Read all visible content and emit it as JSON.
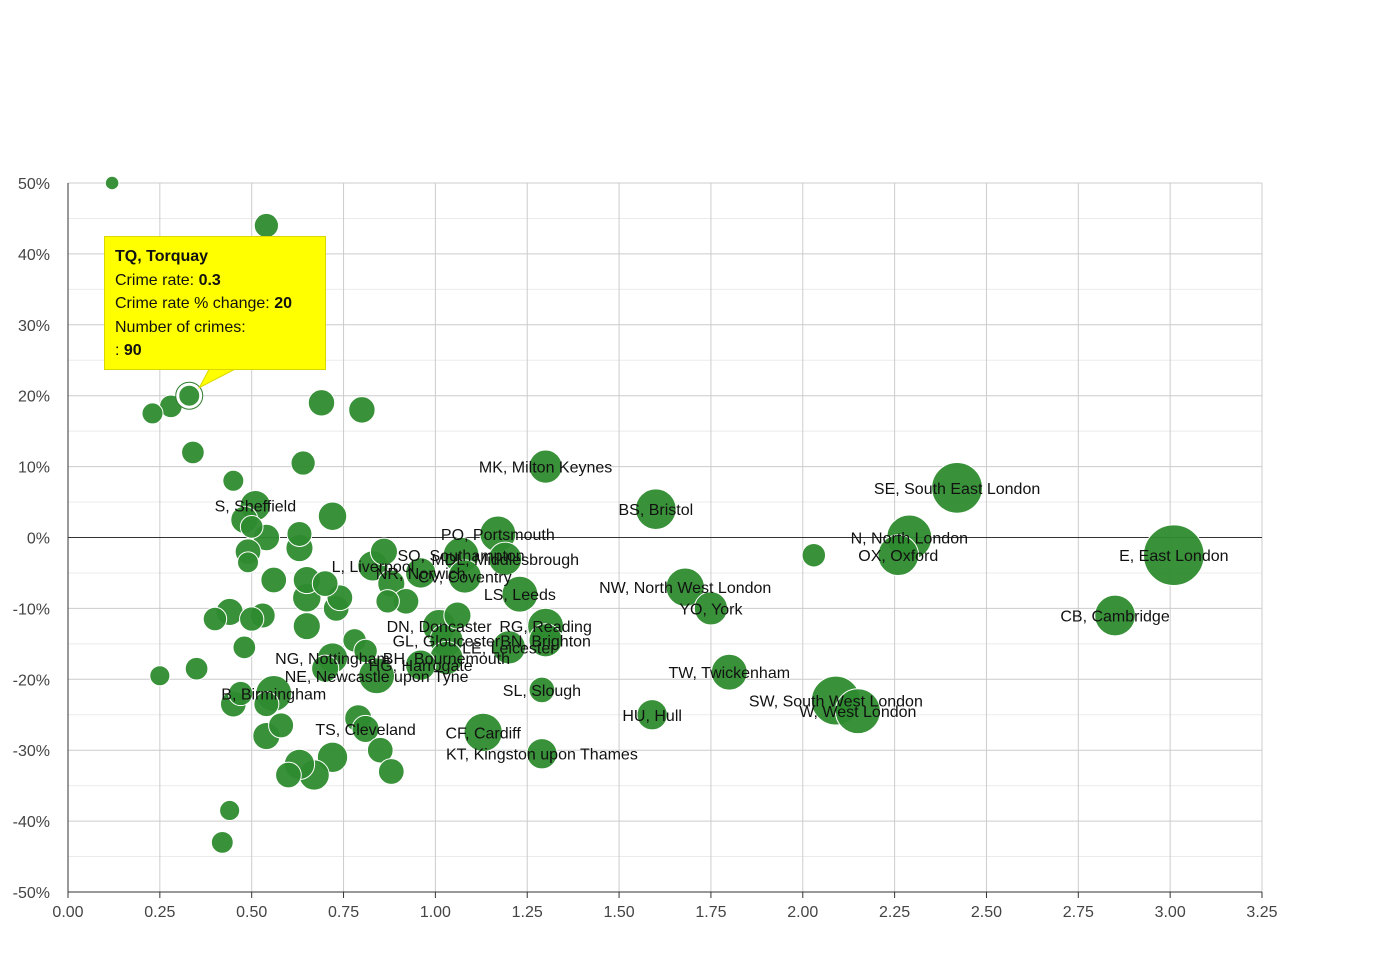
{
  "tooltip": {
    "title": "TQ, Torquay",
    "rate_label": "Crime rate:",
    "rate_value": "0.3",
    "change_label": "Crime rate % change:",
    "change_value": "20",
    "crimes_label": "Number of crimes:",
    "crimes_prefix": ":",
    "crimes_value": "90"
  },
  "colors": {
    "bubble": "#2e8b2e",
    "bubble_stroke": "#ffffff",
    "grid": "#cccccc",
    "zero_line": "#333333",
    "tooltip_bg": "#ffff00"
  },
  "chart_data": {
    "type": "scatter",
    "subtype": "bubble",
    "title": "",
    "xlabel": "",
    "ylabel": "",
    "xlim": [
      0,
      3.25
    ],
    "ylim": [
      -50,
      50
    ],
    "x_ticks": [
      "0.00",
      "0.25",
      "0.50",
      "0.75",
      "1.00",
      "1.25",
      "1.50",
      "1.75",
      "2.00",
      "2.25",
      "2.50",
      "2.75",
      "3.00",
      "3.25"
    ],
    "y_ticks": [
      "50%",
      "40%",
      "30%",
      "20%",
      "10%",
      "0%",
      "-10%",
      "-20%",
      "-30%",
      "-40%",
      "-50%"
    ],
    "grid": true,
    "highlighted": "TQ, Torquay",
    "points": [
      {
        "x": 3.01,
        "y": -2.5,
        "size": 100,
        "label": "E, East London"
      },
      {
        "x": 2.42,
        "y": 7,
        "size": 70,
        "label": "SE, South East London"
      },
      {
        "x": 2.29,
        "y": 0,
        "size": 55,
        "label": "N, North London"
      },
      {
        "x": 2.26,
        "y": -2.5,
        "size": 45,
        "label": "OX, Oxford"
      },
      {
        "x": 2.85,
        "y": -11,
        "size": 45,
        "label": "CB, Cambridge"
      },
      {
        "x": 2.09,
        "y": -23,
        "size": 65,
        "label": "SW, South West London"
      },
      {
        "x": 2.15,
        "y": -24.5,
        "size": 55,
        "label": "W, West London"
      },
      {
        "x": 2.03,
        "y": -2.5,
        "size": 15,
        "label": ""
      },
      {
        "x": 1.6,
        "y": 4,
        "size": 45,
        "label": "BS, Bristol"
      },
      {
        "x": 1.3,
        "y": 10,
        "size": 30,
        "label": "MK, Milton Keynes"
      },
      {
        "x": 1.68,
        "y": -7,
        "size": 40,
        "label": "NW, North West London"
      },
      {
        "x": 1.75,
        "y": -10,
        "size": 30,
        "label": "YO, York"
      },
      {
        "x": 1.8,
        "y": -19,
        "size": 35,
        "label": "TW, Twickenham"
      },
      {
        "x": 1.59,
        "y": -25,
        "size": 25,
        "label": "HU, Hull"
      },
      {
        "x": 1.29,
        "y": -21.5,
        "size": 18,
        "label": "SL, Slough"
      },
      {
        "x": 1.29,
        "y": -30.5,
        "size": 25,
        "label": "KT, Kingston upon Thames"
      },
      {
        "x": 1.17,
        "y": 0.5,
        "size": 35,
        "label": "PO, Portsmouth"
      },
      {
        "x": 1.19,
        "y": -3,
        "size": 30,
        "label": "MDL, Middlesbrough"
      },
      {
        "x": 1.23,
        "y": -8,
        "size": 35,
        "label": "LS, Leeds"
      },
      {
        "x": 1.3,
        "y": -12.5,
        "size": 35,
        "label": "RG, Reading"
      },
      {
        "x": 1.3,
        "y": -14.5,
        "size": 30,
        "label": "BN, Brighton"
      },
      {
        "x": 1.2,
        "y": -15.5,
        "size": 30,
        "label": "LE, Leicester"
      },
      {
        "x": 1.13,
        "y": -27.5,
        "size": 40,
        "label": "CF, Cardiff"
      },
      {
        "x": 1.07,
        "y": -2.5,
        "size": 35,
        "label": "SO, Southampton"
      },
      {
        "x": 1.08,
        "y": -5.5,
        "size": 30,
        "label": "CV, Coventry"
      },
      {
        "x": 1.06,
        "y": -11,
        "size": 20,
        "label": ""
      },
      {
        "x": 1.01,
        "y": -12.5,
        "size": 30,
        "label": "DN, Doncaster"
      },
      {
        "x": 1.03,
        "y": -14.5,
        "size": 30,
        "label": "GL, Gloucester"
      },
      {
        "x": 1.03,
        "y": -17,
        "size": 30,
        "label": "BH, Bournemouth"
      },
      {
        "x": 0.96,
        "y": -5,
        "size": 25,
        "label": "NR, Norwich"
      },
      {
        "x": 0.92,
        "y": -9,
        "size": 18,
        "label": ""
      },
      {
        "x": 0.83,
        "y": -4,
        "size": 25,
        "label": "L, Liverpool"
      },
      {
        "x": 0.86,
        "y": -2,
        "size": 20,
        "label": ""
      },
      {
        "x": 0.88,
        "y": -6.5,
        "size": 20,
        "label": ""
      },
      {
        "x": 0.87,
        "y": -9,
        "size": 15,
        "label": ""
      },
      {
        "x": 0.96,
        "y": -18,
        "size": 25,
        "label": "HG, Harrogate"
      },
      {
        "x": 0.78,
        "y": -14.5,
        "size": 15,
        "label": ""
      },
      {
        "x": 0.81,
        "y": -16,
        "size": 15,
        "label": ""
      },
      {
        "x": 0.84,
        "y": -19.5,
        "size": 35,
        "label": "NE, Newcastle upon Tyne"
      },
      {
        "x": 0.72,
        "y": -17,
        "size": 25,
        "label": "NG, Nottingham"
      },
      {
        "x": 0.7,
        "y": -18.5,
        "size": 20,
        "label": ""
      },
      {
        "x": 0.79,
        "y": -25.5,
        "size": 20,
        "label": ""
      },
      {
        "x": 0.81,
        "y": -27,
        "size": 20,
        "label": "TS, Cleveland"
      },
      {
        "x": 0.85,
        "y": -30,
        "size": 18,
        "label": ""
      },
      {
        "x": 0.88,
        "y": -33,
        "size": 18,
        "label": ""
      },
      {
        "x": 0.72,
        "y": -31,
        "size": 25,
        "label": ""
      },
      {
        "x": 0.67,
        "y": -33.5,
        "size": 25,
        "label": ""
      },
      {
        "x": 0.63,
        "y": -32,
        "size": 25,
        "label": ""
      },
      {
        "x": 0.6,
        "y": -33.5,
        "size": 18,
        "label": ""
      },
      {
        "x": 0.73,
        "y": -10,
        "size": 18,
        "label": ""
      },
      {
        "x": 0.74,
        "y": -8.5,
        "size": 18,
        "label": ""
      },
      {
        "x": 0.7,
        "y": -6.5,
        "size": 18,
        "label": ""
      },
      {
        "x": 0.65,
        "y": -6,
        "size": 20,
        "label": ""
      },
      {
        "x": 0.65,
        "y": -8.5,
        "size": 22,
        "label": ""
      },
      {
        "x": 0.65,
        "y": -12.5,
        "size": 20,
        "label": ""
      },
      {
        "x": 0.72,
        "y": 3,
        "size": 22,
        "label": ""
      },
      {
        "x": 0.63,
        "y": 0.5,
        "size": 17,
        "label": ""
      },
      {
        "x": 0.63,
        "y": -1.5,
        "size": 20,
        "label": ""
      },
      {
        "x": 0.64,
        "y": 10.5,
        "size": 16,
        "label": ""
      },
      {
        "x": 0.69,
        "y": 19,
        "size": 19,
        "label": ""
      },
      {
        "x": 0.8,
        "y": 18,
        "size": 19,
        "label": ""
      },
      {
        "x": 0.54,
        "y": 44,
        "size": 16,
        "label": ""
      },
      {
        "x": 0.12,
        "y": 50,
        "size": 5,
        "label": ""
      },
      {
        "x": 0.33,
        "y": 20,
        "size": 12,
        "label": "TQ, Torquay"
      },
      {
        "x": 0.28,
        "y": 18.5,
        "size": 14,
        "label": ""
      },
      {
        "x": 0.23,
        "y": 17.5,
        "size": 12,
        "label": ""
      },
      {
        "x": 0.34,
        "y": 12,
        "size": 14,
        "label": ""
      },
      {
        "x": 0.45,
        "y": 8,
        "size": 12,
        "label": ""
      },
      {
        "x": 0.51,
        "y": 4.5,
        "size": 25,
        "label": "S, Sheffield"
      },
      {
        "x": 0.48,
        "y": 2.5,
        "size": 20,
        "label": ""
      },
      {
        "x": 0.5,
        "y": 1.5,
        "size": 14,
        "label": ""
      },
      {
        "x": 0.54,
        "y": 0,
        "size": 19,
        "label": ""
      },
      {
        "x": 0.49,
        "y": -2,
        "size": 18,
        "label": ""
      },
      {
        "x": 0.49,
        "y": -3.5,
        "size": 12,
        "label": ""
      },
      {
        "x": 0.56,
        "y": -6,
        "size": 18,
        "label": ""
      },
      {
        "x": 0.44,
        "y": -10.5,
        "size": 20,
        "label": ""
      },
      {
        "x": 0.4,
        "y": -11.5,
        "size": 15,
        "label": ""
      },
      {
        "x": 0.5,
        "y": -11.5,
        "size": 16,
        "label": ""
      },
      {
        "x": 0.53,
        "y": -11,
        "size": 17,
        "label": ""
      },
      {
        "x": 0.48,
        "y": -15.5,
        "size": 14,
        "label": ""
      },
      {
        "x": 0.35,
        "y": -18.5,
        "size": 14,
        "label": ""
      },
      {
        "x": 0.25,
        "y": -19.5,
        "size": 11,
        "label": ""
      },
      {
        "x": 0.56,
        "y": -22,
        "size": 35,
        "label": "B, Birmingham"
      },
      {
        "x": 0.47,
        "y": -22,
        "size": 16,
        "label": ""
      },
      {
        "x": 0.45,
        "y": -23.5,
        "size": 18,
        "label": ""
      },
      {
        "x": 0.54,
        "y": -23.5,
        "size": 17,
        "label": ""
      },
      {
        "x": 0.58,
        "y": -26.5,
        "size": 17,
        "label": ""
      },
      {
        "x": 0.54,
        "y": -28,
        "size": 20,
        "label": ""
      },
      {
        "x": 0.44,
        "y": -38.5,
        "size": 11,
        "label": ""
      },
      {
        "x": 0.42,
        "y": -43,
        "size": 13,
        "label": ""
      }
    ]
  }
}
